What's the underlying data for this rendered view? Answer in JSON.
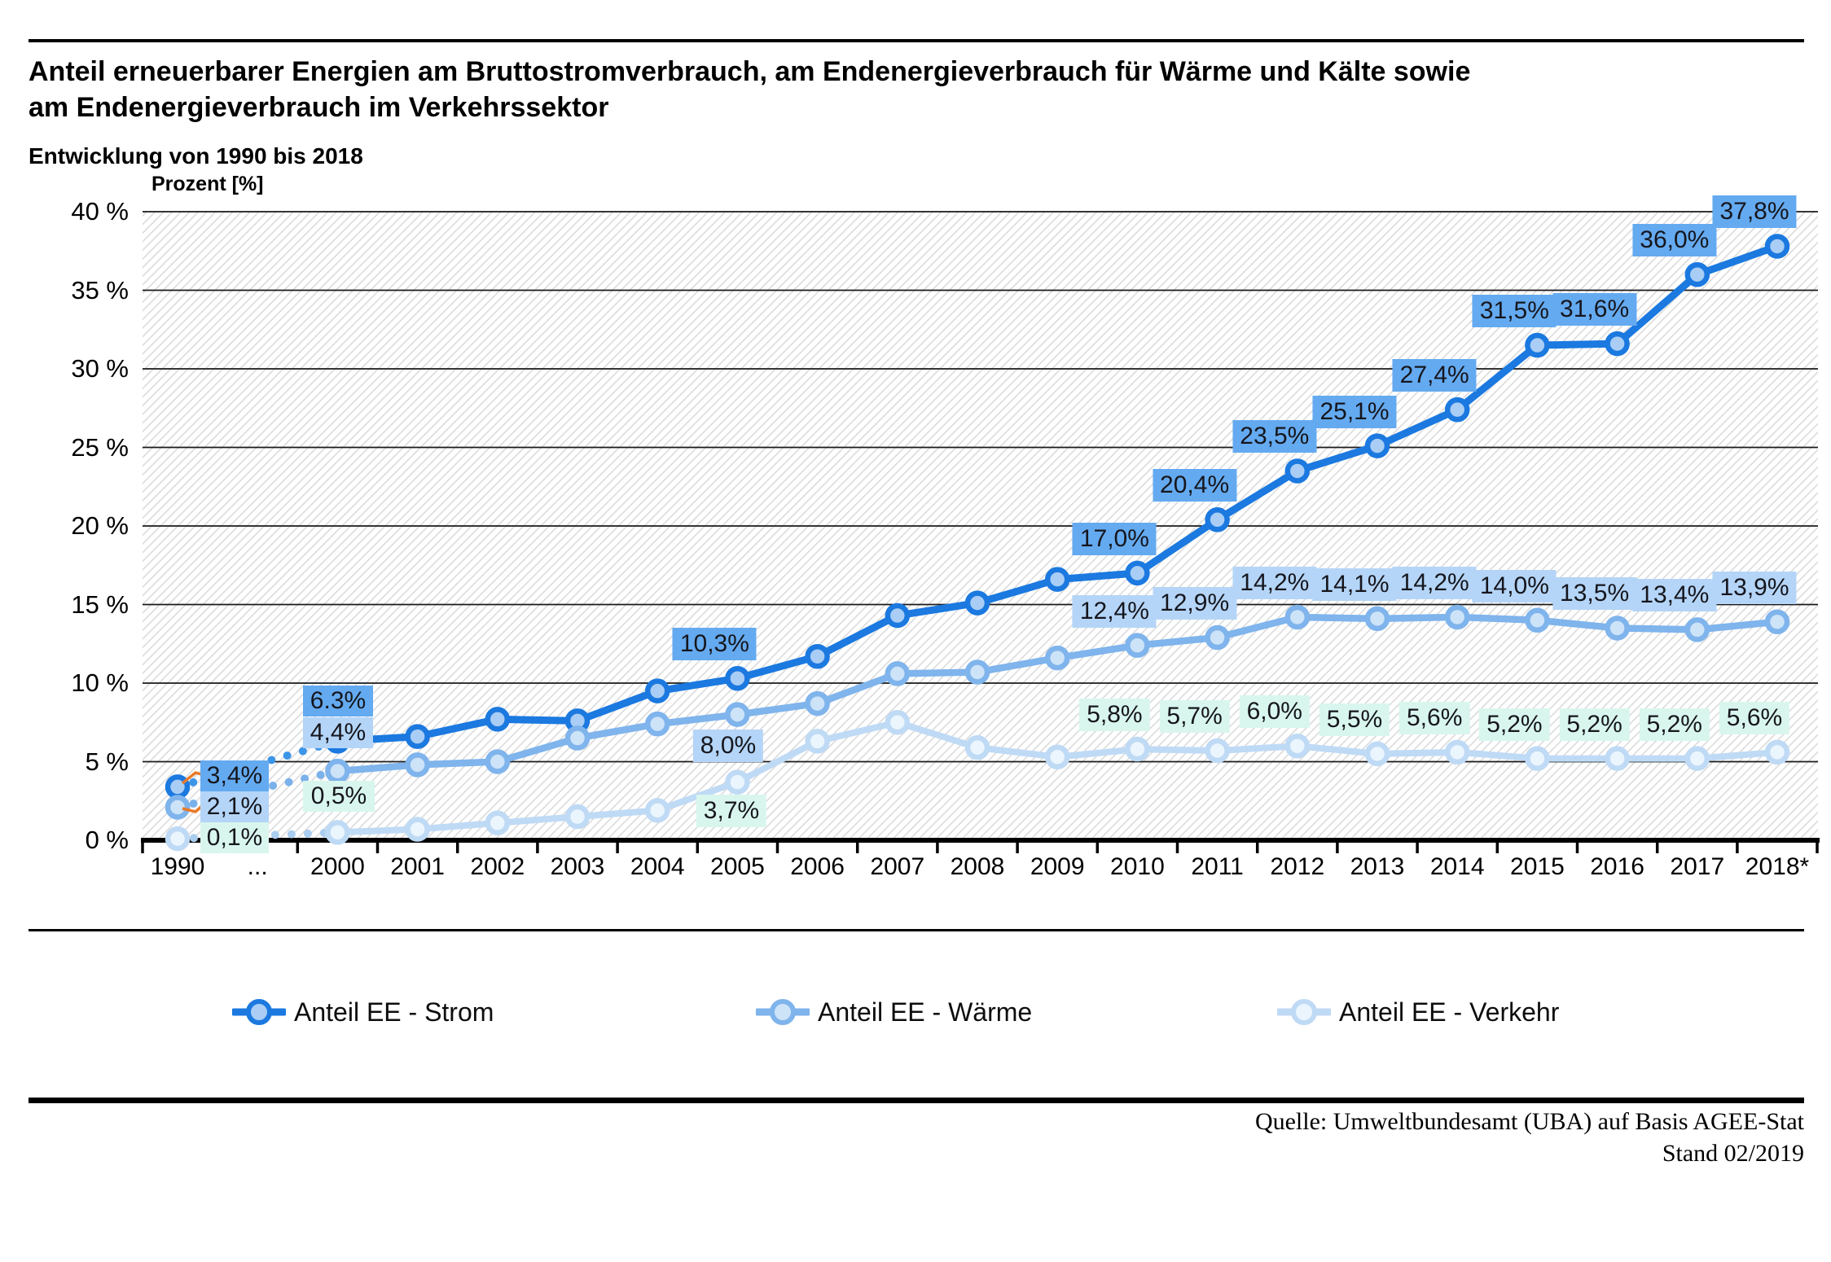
{
  "header": {
    "title_line1": "Anteil erneuerbarer Energien am Bruttostromverbrauch, am Endenergieverbrauch für Wärme und Kälte sowie",
    "title_line2": "am Endenergieverbrauch im Verkehrssektor",
    "subtitle": "Entwicklung von 1990 bis 2018"
  },
  "chart_data": {
    "type": "line",
    "axis_label": "Prozent [%]",
    "categories": [
      "1990",
      "...",
      "2000",
      "2001",
      "2002",
      "2003",
      "2004",
      "2005",
      "2006",
      "2007",
      "2008",
      "2009",
      "2010",
      "2011",
      "2012",
      "2013",
      "2014",
      "2015",
      "2016",
      "2017",
      "2018*"
    ],
    "y_ticks": [
      "40 %",
      "35 %",
      "30 %",
      "25 %",
      "20 %",
      "15 %",
      "10 %",
      "5 %",
      "0 %"
    ],
    "ylim": [
      0,
      40
    ],
    "grid": "horizontal gridlines every 5%, hatched plot background, dotted break 1990...2000",
    "legend_position": "bottom",
    "series": [
      {
        "name": "Anteil EE - Strom",
        "color": "#1b79e0",
        "marker_fill": "#a9cdf4",
        "label_bg": "#64aaf0",
        "values": [
          3.4,
          null,
          6.3,
          6.6,
          7.7,
          7.6,
          9.5,
          10.3,
          11.7,
          14.3,
          15.1,
          16.6,
          17.0,
          20.4,
          23.5,
          25.1,
          27.4,
          31.5,
          31.6,
          36.0,
          37.8
        ],
        "point_labels": {
          "1990": "3,4%",
          "2000": "6.3%",
          "2005": "10,3%",
          "2010": "17,0%",
          "2011": "20,4%",
          "2012": "23,5%",
          "2013": "25,1%",
          "2014": "27,4%",
          "2015": "31,5%",
          "2016": "31,6%",
          "2017": "36,0%",
          "2018*": "37,8%"
        }
      },
      {
        "name": "Anteil EE - Wärme",
        "color": "#7fb4ec",
        "marker_fill": "#cde3f8",
        "label_bg": "#b4d5f7",
        "values": [
          2.1,
          null,
          4.4,
          4.8,
          5.0,
          6.5,
          7.4,
          8.0,
          8.7,
          10.6,
          10.7,
          11.6,
          12.4,
          12.9,
          14.2,
          14.1,
          14.2,
          14.0,
          13.5,
          13.4,
          13.9
        ],
        "point_labels": {
          "1990": "2,1%",
          "2000": "4,4%",
          "2005": "8,0%",
          "2010": "12,4%",
          "2011": "12,9%",
          "2012": "14,2%",
          "2013": "14,1%",
          "2014": "14,2%",
          "2015": "14,0%",
          "2016": "13,5%",
          "2017": "13,4%",
          "2018*": "13,9%"
        }
      },
      {
        "name": "Anteil EE - Verkehr",
        "color": "#bfdaf5",
        "marker_fill": "#eaf5fd",
        "label_bg": "#d9f6ee",
        "values": [
          0.1,
          null,
          0.5,
          0.7,
          1.1,
          1.5,
          1.9,
          3.7,
          6.3,
          7.5,
          5.9,
          5.3,
          5.8,
          5.7,
          6.0,
          5.5,
          5.6,
          5.2,
          5.2,
          5.2,
          5.6
        ],
        "point_labels": {
          "1990": "0,1%",
          "2000": "0,5%",
          "2005": "3,7%",
          "2010": "5,8%",
          "2011": "5,7%",
          "2012": "6,0%",
          "2013": "5,5%",
          "2014": "5,6%",
          "2015": "5,2%",
          "2016": "5,2%",
          "2017": "5,2%",
          "2018*": "5,6%"
        }
      }
    ],
    "annotation_colors": {
      "connector_orange": "#e87a2a",
      "hatch_gray": "#dbdbdb"
    }
  },
  "legend": {
    "items": [
      {
        "label": "Anteil EE - Strom"
      },
      {
        "label": "Anteil EE - Wärme"
      },
      {
        "label": "Anteil EE - Verkehr"
      }
    ]
  },
  "footer": {
    "source_line1": "Quelle: Umweltbundesamt (UBA) auf Basis AGEE-Stat",
    "source_line2": "Stand 02/2019"
  }
}
